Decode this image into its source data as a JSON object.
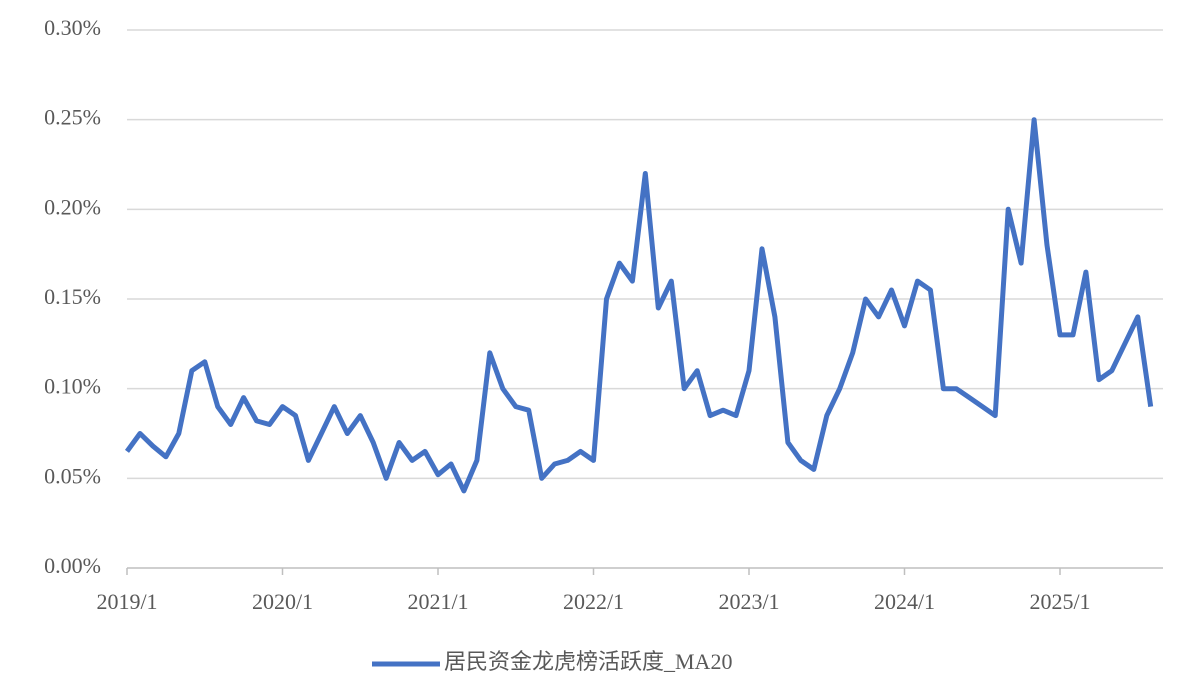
{
  "chart_data": {
    "type": "line",
    "categories": [
      "2019/1",
      null,
      null,
      null,
      null,
      null,
      null,
      null,
      null,
      null,
      null,
      null,
      "2020/1",
      null,
      null,
      null,
      null,
      null,
      null,
      null,
      null,
      null,
      null,
      null,
      "2021/1",
      null,
      null,
      null,
      null,
      null,
      null,
      null,
      null,
      null,
      null,
      null,
      "2022/1",
      null,
      null,
      null,
      null,
      null,
      null,
      null,
      null,
      null,
      null,
      null,
      "2023/1",
      null,
      null,
      null,
      null,
      null,
      null,
      null,
      null,
      null,
      null,
      null,
      "2024/1",
      null,
      null,
      null,
      null,
      null,
      null,
      null,
      null,
      null,
      null,
      null,
      "2025/1",
      null,
      null,
      null,
      null,
      null,
      null,
      null
    ],
    "series": [
      {
        "name": "居民资金龙虎榜活跃度_MA20",
        "color": "#4472c4",
        "values": [
          0.065,
          0.075,
          0.068,
          0.062,
          0.075,
          0.11,
          0.115,
          0.09,
          0.08,
          0.095,
          0.082,
          0.08,
          0.09,
          0.085,
          0.06,
          0.075,
          0.09,
          0.075,
          0.085,
          0.07,
          0.05,
          0.07,
          0.06,
          0.065,
          0.052,
          0.058,
          0.043,
          0.06,
          0.12,
          0.1,
          0.09,
          0.088,
          0.05,
          0.058,
          0.06,
          0.065,
          0.06,
          0.15,
          0.17,
          0.16,
          0.22,
          0.145,
          0.16,
          0.1,
          0.11,
          0.085,
          0.088,
          0.085,
          0.11,
          0.178,
          0.14,
          0.07,
          0.06,
          0.055,
          0.085,
          0.1,
          0.12,
          0.15,
          0.14,
          0.155,
          0.135,
          0.16,
          0.155,
          0.1,
          0.1,
          0.095,
          0.09,
          0.085,
          0.2,
          0.17,
          0.25,
          0.18,
          0.13,
          0.13,
          0.165,
          0.105,
          0.11,
          0.125,
          0.14,
          0.09
        ]
      }
    ],
    "ylim": [
      0,
      0.3
    ],
    "yticks": [
      {
        "value": 0,
        "label": "0.00%"
      },
      {
        "value": 0.05,
        "label": "0.05%"
      },
      {
        "value": 0.1,
        "label": "0.10%"
      },
      {
        "value": 0.15,
        "label": "0.15%"
      },
      {
        "value": 0.2,
        "label": "0.20%"
      },
      {
        "value": 0.25,
        "label": "0.25%"
      },
      {
        "value": 0.3,
        "label": "0.30%"
      }
    ],
    "grid": true,
    "legend": "bottom"
  }
}
